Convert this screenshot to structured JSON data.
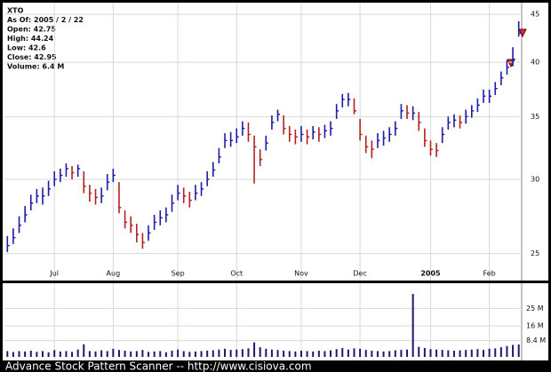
{
  "chart_data": {
    "type": "hlc",
    "header": [
      "XTO",
      "As Of: 2005 / 2 / 22",
      "Open: 42.75",
      "High: 44.24",
      "Low: 42.6",
      "Close: 42.95",
      "Volume: 6.4 M"
    ],
    "footer": "Advance Stock Pattern Scanner -- http://www.cisiova.com",
    "categories": [
      null,
      null,
      null,
      null,
      null,
      null,
      null,
      null,
      "Jul",
      null,
      null,
      null,
      null,
      null,
      null,
      null,
      null,
      null,
      "Aug",
      null,
      null,
      null,
      null,
      null,
      null,
      null,
      null,
      null,
      null,
      "Sep",
      null,
      null,
      null,
      null,
      null,
      null,
      null,
      null,
      null,
      "Oct",
      null,
      null,
      null,
      null,
      null,
      null,
      null,
      null,
      null,
      null,
      "Nov",
      null,
      null,
      null,
      null,
      null,
      null,
      null,
      null,
      null,
      "Dec",
      null,
      null,
      null,
      null,
      null,
      null,
      null,
      null,
      null,
      null,
      null,
      "2005",
      null,
      null,
      null,
      null,
      null,
      null,
      null,
      null,
      null,
      "Feb",
      null,
      null,
      null,
      null,
      null
    ],
    "high": [
      26.1,
      26.6,
      27.4,
      28.1,
      28.9,
      29.3,
      29.4,
      29.9,
      30.6,
      30.8,
      31.2,
      31,
      31.1,
      30.6,
      29.6,
      29.3,
      29.4,
      30.4,
      30.8,
      29.8,
      27.8,
      27.4,
      26.9,
      26.3,
      26.8,
      27.5,
      27.8,
      28,
      28.9,
      29.6,
      29.4,
      29.1,
      29.6,
      29.8,
      30.6,
      31.3,
      32.4,
      33.6,
      33.7,
      34,
      34.6,
      34.5,
      33.4,
      32.3,
      33.4,
      35.1,
      35.6,
      35.1,
      34.2,
      33.9,
      34.2,
      33.9,
      34.2,
      34.1,
      34.3,
      34.6,
      36.1,
      37,
      37.1,
      36.6,
      34.8,
      33.4,
      33,
      33.6,
      33.8,
      34.1,
      34.6,
      36.1,
      36,
      35.9,
      35.4,
      34,
      33,
      32.8,
      34.1,
      35,
      35.2,
      35.1,
      35.6,
      36,
      36.6,
      37.4,
      37.4,
      38.1,
      39.1,
      40.2,
      41.5,
      44.24
    ],
    "low": [
      25.1,
      25.6,
      26.3,
      27,
      27.8,
      28.3,
      28.2,
      28.8,
      29.5,
      29.8,
      30.2,
      30,
      30.2,
      29,
      28.4,
      28.2,
      28.3,
      29.2,
      29.8,
      27.6,
      26.6,
      26.3,
      25.7,
      25.3,
      25.8,
      26.5,
      26.8,
      27,
      27.7,
      28.5,
      28.3,
      28,
      28.5,
      28.8,
      29.5,
      30.2,
      31.2,
      32.4,
      32.5,
      32.8,
      33.4,
      32.9,
      29.7,
      31,
      32.2,
      33.9,
      34.6,
      33.5,
      32.9,
      32.7,
      32.9,
      32.7,
      33.1,
      32.9,
      33.2,
      33.4,
      34.8,
      35.8,
      35.9,
      35.2,
      33,
      32,
      31.6,
      32.4,
      32.6,
      32.9,
      33.4,
      34.8,
      34.8,
      34.7,
      33.8,
      32.5,
      31.8,
      31.7,
      32.8,
      33.9,
      34.1,
      34,
      34.4,
      34.9,
      35.4,
      36.2,
      36.2,
      36.9,
      37.8,
      38.8,
      39.6,
      42.6
    ],
    "close": [
      25.5,
      26,
      26.8,
      27.5,
      28.3,
      28.8,
      28.8,
      29.3,
      30,
      30.3,
      30.8,
      30.5,
      30.8,
      29.5,
      29,
      28.7,
      28.8,
      29.8,
      30.3,
      28,
      27,
      26.8,
      26.2,
      25.7,
      26.3,
      27,
      27.3,
      27.5,
      28.3,
      29,
      28.8,
      28.5,
      29,
      29.3,
      30,
      30.7,
      31.7,
      33,
      33,
      33.3,
      34,
      33.5,
      32.5,
      31.5,
      32.8,
      34.5,
      35.2,
      34,
      33.5,
      33.3,
      33.5,
      33.3,
      33.7,
      33.5,
      33.8,
      34,
      35.5,
      36.5,
      36.5,
      35.5,
      33.5,
      32.5,
      32.3,
      33,
      33.2,
      33.5,
      34,
      35.5,
      35.3,
      35.3,
      34.5,
      33,
      32.3,
      32.2,
      33.5,
      34.5,
      34.7,
      34.5,
      35,
      35.5,
      36,
      36.8,
      36.8,
      37.5,
      38.5,
      39.5,
      40.3,
      42.95
    ],
    "volume": [
      3,
      2.5,
      3,
      2.8,
      3.2,
      2.6,
      3,
      2.4,
      3.5,
      2.8,
      3,
      2.6,
      3.8,
      6.5,
      3,
      2.8,
      3.4,
      3,
      4.2,
      3.6,
      3.2,
      2.8,
      3,
      3.6,
      2.6,
      2.8,
      3,
      2.4,
      3.2,
      3.8,
      3,
      2.6,
      2.8,
      3,
      3.2,
      3.4,
      3.8,
      4.2,
      3.6,
      3.8,
      4,
      4.4,
      7.5,
      5,
      4.2,
      3.8,
      3.6,
      3.2,
      3,
      2.8,
      3.2,
      3,
      2.8,
      3.2,
      3,
      3.4,
      4,
      4.6,
      3.8,
      4.4,
      4.2,
      3.6,
      3.2,
      3,
      2.8,
      3,
      3.4,
      3.6,
      3.8,
      32.5,
      5.2,
      4.6,
      4,
      3.8,
      3.6,
      3.4,
      3.2,
      3.4,
      3.6,
      3.8,
      4,
      3.6,
      4.2,
      4.4,
      5,
      5.6,
      6.2,
      6.4
    ],
    "ylim": [
      23.4,
      46.3
    ],
    "yticks": [
      25,
      30,
      35,
      40,
      45
    ],
    "log_scale": true,
    "vlim": [
      0,
      38
    ],
    "vticks": [
      {
        "value": 8.4,
        "label": "8.4 M"
      },
      {
        "value": 16,
        "label": "16 M"
      },
      {
        "value": 25,
        "label": "25 M"
      }
    ],
    "up_color": "#1c1ca8",
    "down_color": "#b32020",
    "volume_color": "#1a1a70",
    "grid": true
  }
}
